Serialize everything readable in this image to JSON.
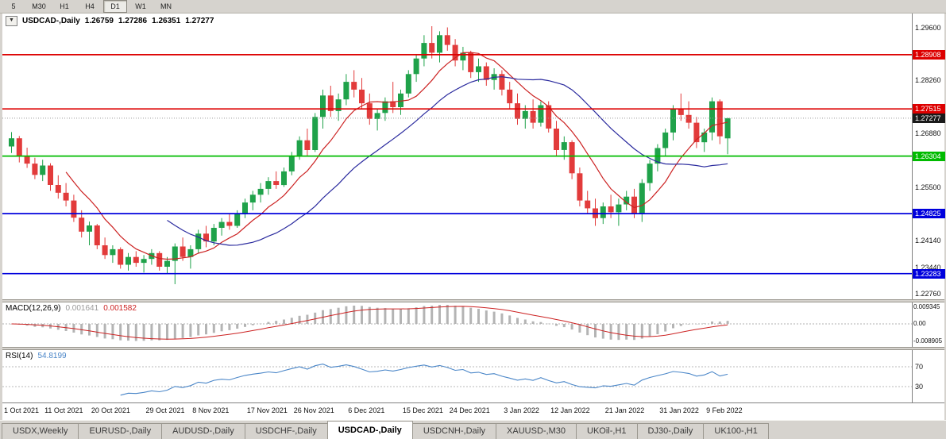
{
  "toolbar": {
    "periods": [
      {
        "label": "5",
        "active": false
      },
      {
        "label": "M30",
        "active": false
      },
      {
        "label": "H1",
        "active": false
      },
      {
        "label": "H4",
        "active": false
      },
      {
        "label": "D1",
        "active": true
      },
      {
        "label": "W1",
        "active": false
      },
      {
        "label": "MN",
        "active": false
      }
    ]
  },
  "header": {
    "symbol": "USDCAD-,Daily",
    "open": "1.26759",
    "high": "1.27286",
    "low": "1.26351",
    "close": "1.27277"
  },
  "indicators": {
    "macd": {
      "label": "MACD(12,26,9)",
      "main_value": "0.001641",
      "signal_value": "0.001582"
    },
    "rsi": {
      "label": "RSI(14)",
      "value": "54.8199"
    }
  },
  "tabs": [
    {
      "label": "USDX,Weekly",
      "active": false
    },
    {
      "label": "EURUSD-,Daily",
      "active": false
    },
    {
      "label": "AUDUSD-,Daily",
      "active": false
    },
    {
      "label": "USDCHF-,Daily",
      "active": false
    },
    {
      "label": "USDCAD-,Daily",
      "active": true
    },
    {
      "label": "USDCNH-,Daily",
      "active": false
    },
    {
      "label": "XAUUSD-,M30",
      "active": false
    },
    {
      "label": "UKOil-,H1",
      "active": false
    },
    {
      "label": "DJ30-,Daily",
      "active": false
    },
    {
      "label": "UK100-,H1",
      "active": false
    }
  ],
  "colors": {
    "bull": "#1fa24a",
    "bear": "#e23b3b",
    "ma_fast": "#cc2222",
    "ma_slow": "#2a2a9e",
    "macd_hist": "#b4b4b4",
    "macd_signal": "#cc2222",
    "rsi_line": "#4a86c8",
    "line_red": "#dd0000",
    "line_green": "#00bb00",
    "line_blue": "#0000dd",
    "badge_current": "#1a1a1a"
  },
  "chart_data": {
    "type": "candlestick",
    "symbol": "USDCAD-",
    "timeframe": "Daily",
    "title": "USDCAD-,Daily",
    "ohlc_display": {
      "open": "1.26759",
      "high": "1.27286",
      "low": "1.26351",
      "close": "1.27277"
    },
    "y_axis": {
      "ticks": [
        "1.29600",
        "1.28260",
        "1.26880",
        "1.25500",
        "1.24140",
        "1.23440",
        "1.22760"
      ]
    },
    "x_axis": {
      "labels": [
        "1 Oct 2021",
        "11 Oct 2021",
        "20 Oct 2021",
        "29 Oct 2021",
        "8 Nov 2021",
        "17 Nov 2021",
        "26 Nov 2021",
        "6 Dec 2021",
        "15 Dec 2021",
        "24 Dec 2021",
        "3 Jan 2022",
        "12 Jan 2022",
        "21 Jan 2022",
        "31 Jan 2022",
        "9 Feb 2022"
      ],
      "candle_indices": [
        0,
        7,
        13,
        20,
        26,
        33,
        39,
        46,
        53,
        59,
        66,
        72,
        79,
        86,
        92
      ]
    },
    "horizontal_lines": [
      {
        "value": 1.28908,
        "label": "1.28908",
        "color": "#dd0000",
        "type": "resistance"
      },
      {
        "value": 1.27515,
        "label": "1.27515",
        "color": "#dd0000",
        "type": "resistance"
      },
      {
        "value": 1.26304,
        "label": "1.26304",
        "color": "#00bb00",
        "type": "support"
      },
      {
        "value": 1.24825,
        "label": "1.24825",
        "color": "#0000dd",
        "type": "support"
      },
      {
        "value": 1.23283,
        "label": "1.23283",
        "color": "#0000dd",
        "type": "support"
      }
    ],
    "current_price": {
      "value": 1.27277,
      "label": "1.27277"
    },
    "moving_averages": [
      {
        "name": "fast",
        "period": 8,
        "color": "#cc2222"
      },
      {
        "name": "slow",
        "period": 21,
        "color": "#2a2a9e"
      }
    ],
    "macd": {
      "params": [
        12,
        26,
        9
      ],
      "ticks": [
        "0.009345",
        "0.00",
        "-0.008905"
      ]
    },
    "rsi": {
      "period": 14,
      "levels": [
        70,
        30
      ],
      "ticks": [
        "70",
        "30"
      ]
    },
    "candles": [
      [
        1.2655,
        1.2692,
        1.2638,
        1.2676
      ],
      [
        1.2676,
        1.2682,
        1.2614,
        1.263
      ],
      [
        1.263,
        1.2652,
        1.26,
        1.2611
      ],
      [
        1.2611,
        1.2626,
        1.2571,
        1.2582
      ],
      [
        1.2582,
        1.2621,
        1.2566,
        1.2606
      ],
      [
        1.2606,
        1.2612,
        1.2541,
        1.2556
      ],
      [
        1.2556,
        1.2581,
        1.2521,
        1.2536
      ],
      [
        1.2536,
        1.2561,
        1.2501,
        1.2516
      ],
      [
        1.2516,
        1.2531,
        1.2461,
        1.2472
      ],
      [
        1.2472,
        1.2491,
        1.2421,
        1.2436
      ],
      [
        1.2436,
        1.2462,
        1.2401,
        1.2452
      ],
      [
        1.2452,
        1.2456,
        1.2391,
        1.2401
      ],
      [
        1.2401,
        1.2421,
        1.2366,
        1.2376
      ],
      [
        1.2376,
        1.2401,
        1.2356,
        1.2391
      ],
      [
        1.2391,
        1.2396,
        1.2341,
        1.2351
      ],
      [
        1.2351,
        1.2381,
        1.2336,
        1.2371
      ],
      [
        1.2371,
        1.2386,
        1.2346,
        1.2356
      ],
      [
        1.2356,
        1.2376,
        1.2331,
        1.2366
      ],
      [
        1.2366,
        1.2391,
        1.2351,
        1.2381
      ],
      [
        1.2381,
        1.2386,
        1.2336,
        1.2346
      ],
      [
        1.2346,
        1.2371,
        1.2329,
        1.2361
      ],
      [
        1.2361,
        1.2406,
        1.2301,
        1.2398
      ],
      [
        1.2398,
        1.2421,
        1.2361,
        1.2371
      ],
      [
        1.2371,
        1.2401,
        1.2341,
        1.2391
      ],
      [
        1.2391,
        1.2441,
        1.2381,
        1.2431
      ],
      [
        1.2431,
        1.2451,
        1.2396,
        1.2411
      ],
      [
        1.2411,
        1.2456,
        1.2401,
        1.2446
      ],
      [
        1.2446,
        1.2471,
        1.2426,
        1.2461
      ],
      [
        1.2461,
        1.2481,
        1.2441,
        1.2451
      ],
      [
        1.2451,
        1.2491,
        1.2446,
        1.2481
      ],
      [
        1.2481,
        1.2521,
        1.2471,
        1.2511
      ],
      [
        1.2511,
        1.2541,
        1.2491,
        1.2531
      ],
      [
        1.2531,
        1.2561,
        1.2511,
        1.2546
      ],
      [
        1.2546,
        1.2576,
        1.2531,
        1.2566
      ],
      [
        1.2566,
        1.2591,
        1.2546,
        1.2556
      ],
      [
        1.2556,
        1.2601,
        1.2551,
        1.2591
      ],
      [
        1.2591,
        1.2641,
        1.2581,
        1.2631
      ],
      [
        1.2631,
        1.2681,
        1.2621,
        1.2671
      ],
      [
        1.2671,
        1.2701,
        1.2631,
        1.2646
      ],
      [
        1.2646,
        1.2741,
        1.2641,
        1.2731
      ],
      [
        1.2731,
        1.2801,
        1.2701,
        1.2786
      ],
      [
        1.2786,
        1.2811,
        1.2731,
        1.2746
      ],
      [
        1.2746,
        1.2791,
        1.2721,
        1.2776
      ],
      [
        1.2776,
        1.2841,
        1.2761,
        1.2821
      ],
      [
        1.2821,
        1.2851,
        1.2781,
        1.2801
      ],
      [
        1.2801,
        1.2831,
        1.2751,
        1.2766
      ],
      [
        1.2766,
        1.2791,
        1.2711,
        1.2726
      ],
      [
        1.2726,
        1.2751,
        1.2696,
        1.2741
      ],
      [
        1.2741,
        1.2781,
        1.2721,
        1.2771
      ],
      [
        1.2771,
        1.2821,
        1.2741,
        1.2756
      ],
      [
        1.2756,
        1.2801,
        1.2736,
        1.2791
      ],
      [
        1.2791,
        1.2851,
        1.2781,
        1.2841
      ],
      [
        1.2841,
        1.2891,
        1.2821,
        1.2881
      ],
      [
        1.2881,
        1.2941,
        1.2861,
        1.2921
      ],
      [
        1.2921,
        1.2964,
        1.2881,
        1.2896
      ],
      [
        1.2896,
        1.2951,
        1.2871,
        1.2941
      ],
      [
        1.2941,
        1.2961,
        1.2901,
        1.2916
      ],
      [
        1.2916,
        1.2931,
        1.2861,
        1.2876
      ],
      [
        1.2876,
        1.2911,
        1.2851,
        1.2896
      ],
      [
        1.2896,
        1.2901,
        1.2831,
        1.2846
      ],
      [
        1.2846,
        1.2881,
        1.2821,
        1.2861
      ],
      [
        1.2861,
        1.2871,
        1.2811,
        1.2826
      ],
      [
        1.2826,
        1.2856,
        1.2801,
        1.2841
      ],
      [
        1.2841,
        1.2851,
        1.2786,
        1.2801
      ],
      [
        1.2801,
        1.2821,
        1.2751,
        1.2766
      ],
      [
        1.2766,
        1.2791,
        1.2711,
        1.2726
      ],
      [
        1.2726,
        1.2761,
        1.2701,
        1.2746
      ],
      [
        1.2746,
        1.2776,
        1.2701,
        1.2716
      ],
      [
        1.2716,
        1.2771,
        1.2706,
        1.2761
      ],
      [
        1.2761,
        1.2771,
        1.2691,
        1.2701
      ],
      [
        1.2701,
        1.2721,
        1.2631,
        1.2646
      ],
      [
        1.2646,
        1.2681,
        1.2621,
        1.2666
      ],
      [
        1.2666,
        1.2671,
        1.2571,
        1.2586
      ],
      [
        1.2586,
        1.2601,
        1.2501,
        1.2516
      ],
      [
        1.2516,
        1.2541,
        1.2481,
        1.2496
      ],
      [
        1.2496,
        1.2521,
        1.2451,
        1.2471
      ],
      [
        1.2471,
        1.2511,
        1.2456,
        1.2501
      ],
      [
        1.2501,
        1.2531,
        1.2471,
        1.2486
      ],
      [
        1.2486,
        1.2521,
        1.2451,
        1.2506
      ],
      [
        1.2506,
        1.2541,
        1.2491,
        1.2526
      ],
      [
        1.2526,
        1.2546,
        1.2471,
        1.2481
      ],
      [
        1.2481,
        1.2571,
        1.2461,
        1.2561
      ],
      [
        1.2561,
        1.2621,
        1.2541,
        1.2611
      ],
      [
        1.2611,
        1.2661,
        1.2591,
        1.2651
      ],
      [
        1.2651,
        1.2701,
        1.2631,
        1.2691
      ],
      [
        1.2691,
        1.2761,
        1.2671,
        1.2751
      ],
      [
        1.2751,
        1.2791,
        1.2721,
        1.2736
      ],
      [
        1.2736,
        1.2771,
        1.2701,
        1.2716
      ],
      [
        1.2716,
        1.2731,
        1.2651,
        1.2666
      ],
      [
        1.2666,
        1.2701,
        1.2641,
        1.2691
      ],
      [
        1.2691,
        1.2781,
        1.2671,
        1.2771
      ],
      [
        1.2771,
        1.2776,
        1.2661,
        1.2681
      ],
      [
        1.26759,
        1.27286,
        1.26351,
        1.27277
      ]
    ]
  }
}
